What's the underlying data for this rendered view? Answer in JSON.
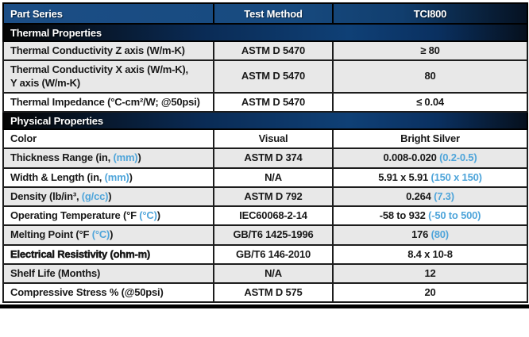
{
  "colors": {
    "accent_blue": "#4fa5da",
    "row_gray": "#e8e8e8",
    "header_navy": "#174a7f",
    "section_navy": "#0f4076",
    "border": "#1d1d1d"
  },
  "header": {
    "columns": [
      "Part Series",
      "Test Method",
      "TCI800"
    ]
  },
  "sections": [
    {
      "title": "Thermal Properties",
      "rows": [
        {
          "property": [
            {
              "text": "Thermal Conductivity Z axis (W/m-K)"
            }
          ],
          "method": "ASTM D 5470",
          "value": [
            {
              "text": "≥ 80"
            }
          ],
          "shade": "gray"
        },
        {
          "property": [
            {
              "text": "Thermal Conductivity X axis (W/m-K),\nY axis (W/m-K)"
            }
          ],
          "method": "ASTM D 5470",
          "value": [
            {
              "text": "80"
            }
          ],
          "shade": "gray"
        },
        {
          "property": [
            {
              "text": "Thermal Impedance (°C-cm²/W; @50psi)"
            }
          ],
          "method": "ASTM D 5470",
          "value": [
            {
              "text": "≤ 0.04"
            }
          ],
          "shade": "white"
        }
      ]
    },
    {
      "title": "Physical Properties",
      "rows": [
        {
          "property": [
            {
              "text": "Color"
            }
          ],
          "method": "Visual",
          "value": [
            {
              "text": "Bright Silver"
            }
          ],
          "shade": "white"
        },
        {
          "property": [
            {
              "text": "Thickness Range (in, "
            },
            {
              "text": "(mm)",
              "blue": true
            },
            {
              "text": ")"
            }
          ],
          "method": "ASTM D 374",
          "value": [
            {
              "text": "0.008-0.020 "
            },
            {
              "text": "(0.2-0.5)",
              "blue": true
            }
          ],
          "shade": "gray"
        },
        {
          "property": [
            {
              "text": "Width & Length (in, "
            },
            {
              "text": "(mm)",
              "blue": true
            },
            {
              "text": ")"
            }
          ],
          "method": "N/A",
          "value": [
            {
              "text": "5.91 x 5.91 "
            },
            {
              "text": "(150 x 150)",
              "blue": true
            }
          ],
          "shade": "white"
        },
        {
          "property": [
            {
              "text": "Density (lb/in³, "
            },
            {
              "text": "(g/cc)",
              "blue": true
            },
            {
              "text": ")"
            }
          ],
          "method": "ASTM D 792",
          "value": [
            {
              "text": "0.264 "
            },
            {
              "text": "(7.3)",
              "blue": true
            }
          ],
          "shade": "gray"
        },
        {
          "property": [
            {
              "text": "Operating Temperature (°F "
            },
            {
              "text": "(°C)",
              "blue": true
            },
            {
              "text": ")"
            }
          ],
          "method": "IEC60068-2-14",
          "value": [
            {
              "text": "-58 to 932 "
            },
            {
              "text": "(-50 to 500)",
              "blue": true
            }
          ],
          "shade": "white"
        },
        {
          "property": [
            {
              "text": "Melting Point (°F "
            },
            {
              "text": "(°C)",
              "blue": true
            },
            {
              "text": ")"
            }
          ],
          "method": "GB/T6 1425-1996",
          "value": [
            {
              "text": "176 "
            },
            {
              "text": "(80)",
              "blue": true
            }
          ],
          "shade": "gray"
        },
        {
          "property": [
            {
              "text": "Electrical Resistivity (ohm-m)"
            }
          ],
          "property_bold": true,
          "method": "GB/T6 146-2010",
          "value": [
            {
              "text": "8.4 x 10-8"
            }
          ],
          "shade": "white"
        },
        {
          "property": [
            {
              "text": "Shelf Life (Months)"
            }
          ],
          "method": "N/A",
          "value": [
            {
              "text": "12"
            }
          ],
          "shade": "gray"
        },
        {
          "property": [
            {
              "text": "Compressive Stress % (@50psi)"
            }
          ],
          "method": "ASTM D 575",
          "value": [
            {
              "text": "20"
            }
          ],
          "shade": "white"
        }
      ]
    }
  ]
}
